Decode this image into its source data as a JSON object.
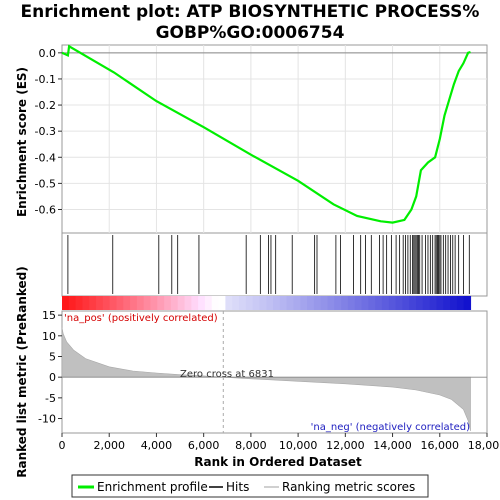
{
  "title_line1": "Enrichment plot: ATP BIOSYNTHETIC PROCESS%",
  "title_line2": "GOBP%GO:0006754",
  "chart_data": {
    "type": "line",
    "x_label": "Rank in Ordered Dataset",
    "x_ticks": [
      0,
      2000,
      4000,
      6000,
      8000,
      10000,
      12000,
      14000,
      16000,
      18000
    ],
    "x_tick_labels": [
      "0",
      "2,000",
      "4,000",
      "6,000",
      "8,000",
      "10,000",
      "12,000",
      "14,000",
      "16,000",
      "18,000"
    ],
    "x_range": [
      0,
      18000
    ],
    "n_genes": 17300,
    "es_panel": {
      "ylabel": "Enrichment score (ES)",
      "ylim": [
        -0.69,
        0.03
      ],
      "y_ticks": [
        0.0,
        -0.1,
        -0.2,
        -0.3,
        -0.4,
        -0.5,
        -0.6
      ],
      "y_tick_labels": [
        "0.0",
        "-0.1",
        "-0.2",
        "-0.3",
        "-0.4",
        "-0.5",
        "-0.6"
      ],
      "color": "#00ee00",
      "x": [
        0,
        250,
        300,
        2200,
        4000,
        6000,
        8000,
        10000,
        11500,
        12500,
        13500,
        14000,
        14500,
        14800,
        15000,
        15200,
        15500,
        15800,
        16000,
        16200,
        16400,
        16600,
        16800,
        17000,
        17200,
        17300
      ],
      "es": [
        0.0,
        -0.01,
        0.025,
        -0.075,
        -0.185,
        -0.285,
        -0.39,
        -0.49,
        -0.58,
        -0.625,
        -0.645,
        -0.65,
        -0.64,
        -0.6,
        -0.55,
        -0.45,
        -0.42,
        -0.4,
        -0.33,
        -0.24,
        -0.18,
        -0.12,
        -0.07,
        -0.04,
        0.0,
        0.003
      ]
    },
    "hits": [
      250,
      2150,
      4100,
      4650,
      4900,
      5800,
      7800,
      8400,
      8750,
      8850,
      9050,
      9750,
      10700,
      10800,
      11600,
      11800,
      12350,
      12650,
      12850,
      13100,
      13450,
      13600,
      13750,
      13950,
      14150,
      14300,
      14450,
      14550,
      14650,
      14750,
      14850,
      14900,
      14950,
      15000,
      15050,
      15100,
      15150,
      15250,
      15400,
      15500,
      15600,
      15700,
      15800,
      15850,
      15900,
      15950,
      16000,
      16050,
      16150,
      16250,
      16350,
      16450,
      16550,
      16650,
      16800,
      17000,
      17250
    ],
    "metric_panel": {
      "ylabel": "Ranked list metric (PreRanked)",
      "ylim": [
        -13.5,
        16
      ],
      "y_ticks": [
        15,
        10,
        5,
        0,
        -5,
        -10
      ],
      "y_tick_labels": [
        "15",
        "10",
        "5",
        "0",
        "-5",
        "-10"
      ],
      "x": [
        0,
        50,
        200,
        500,
        1000,
        2000,
        3000,
        4000,
        5000,
        6000,
        6831,
        8000,
        10000,
        12000,
        14000,
        15000,
        16000,
        16500,
        17000,
        17200,
        17300
      ],
      "values": [
        12,
        10.5,
        8.5,
        6.5,
        4.5,
        2.5,
        1.5,
        1.0,
        0.6,
        0.3,
        0.0,
        -0.4,
        -1.0,
        -1.6,
        -2.4,
        -3.1,
        -4.3,
        -5.4,
        -7.8,
        -10.5,
        -13.0
      ],
      "zero_cross_label": "Zero cross at 6831",
      "zero_cross_rank": 6831,
      "pos_label": "'na_pos' (positively correlated)",
      "neg_label": "'na_neg' (negatively correlated)"
    },
    "legend": [
      {
        "label": "Enrichment profile",
        "color": "#00ee00"
      },
      {
        "label": "Hits",
        "color": "#000000"
      },
      {
        "label": "Ranking metric scores",
        "color": "#c0c0c0"
      }
    ]
  }
}
